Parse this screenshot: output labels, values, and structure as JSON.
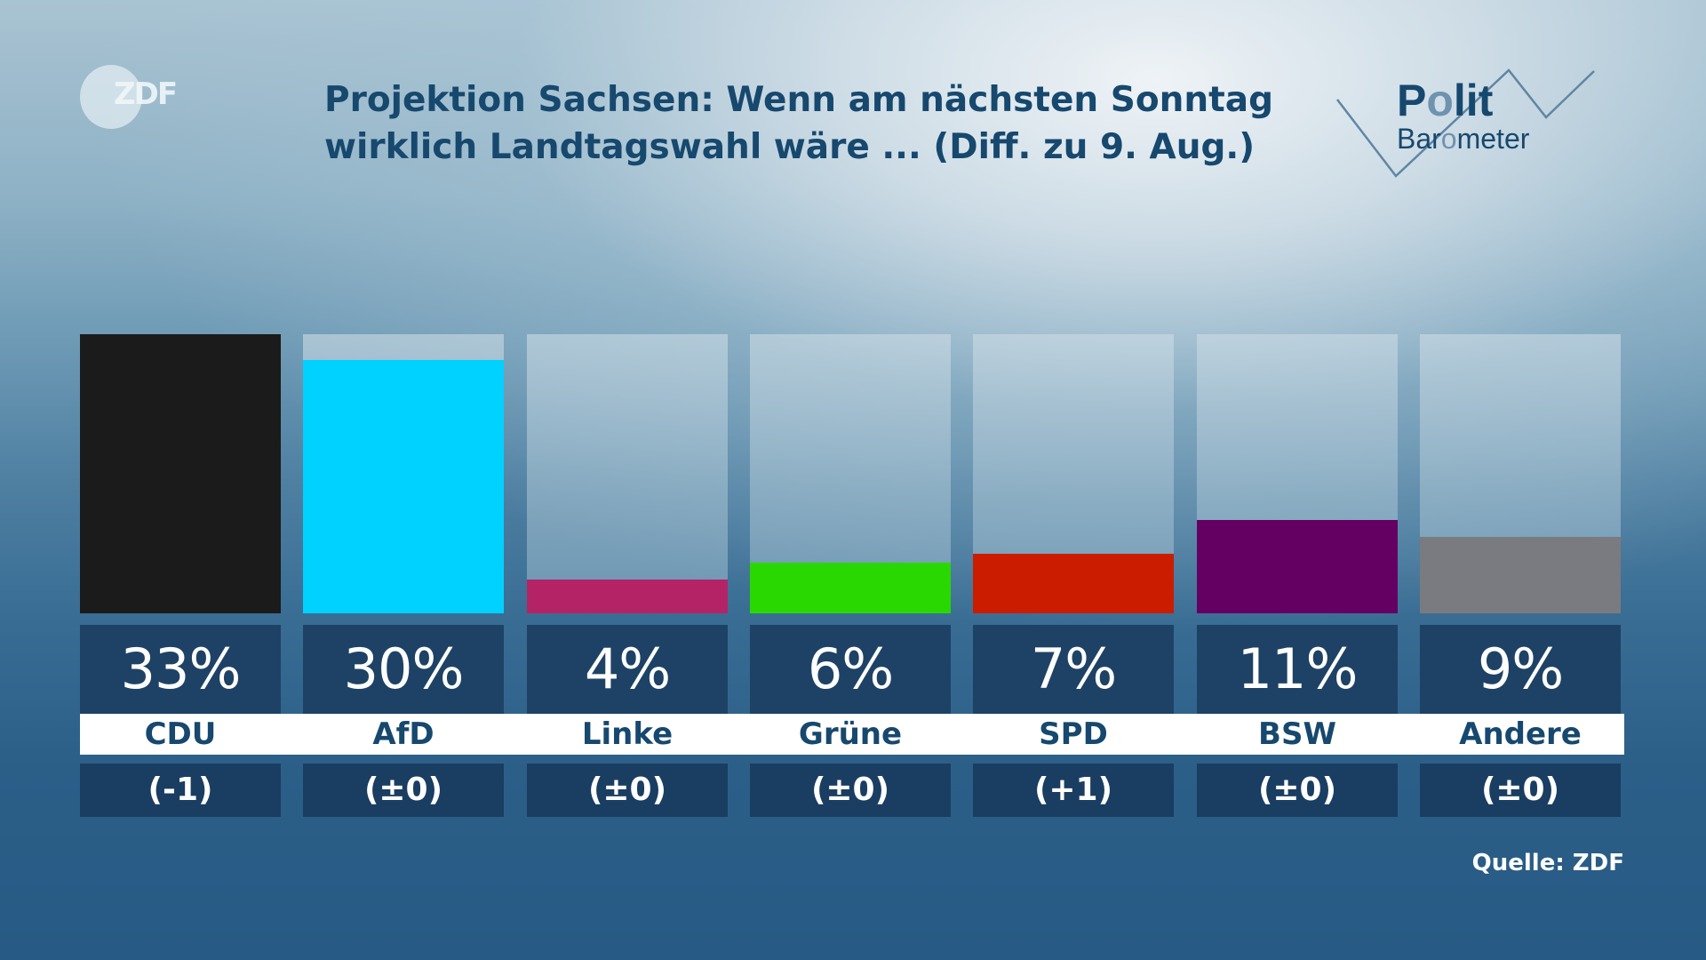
{
  "logo": {
    "broadcaster": "ZDF",
    "show_line1": "Polit",
    "show_line2": "Barometer"
  },
  "header": {
    "title_line1": "Projektion Sachsen: Wenn am nächsten Sonntag",
    "title_line2": "wirklich Landtagswahl wäre ... (Diff. zu 9. Aug.)"
  },
  "footer": {
    "source": "Quelle: ZDF"
  },
  "chart_data": {
    "type": "bar",
    "title": "Projektion Sachsen: Wenn am nächsten Sonntag wirklich Landtagswahl wäre ... (Diff. zu 9. Aug.)",
    "xlabel": "",
    "ylabel": "",
    "unit": "%",
    "ylim": [
      0,
      33
    ],
    "grid": false,
    "legend": "none",
    "categories": [
      "CDU",
      "AfD",
      "Linke",
      "Grüne",
      "SPD",
      "BSW",
      "Andere"
    ],
    "values": [
      33,
      30,
      4,
      6,
      7,
      11,
      9
    ],
    "value_labels": [
      "33%",
      "30%",
      "4%",
      "6%",
      "7%",
      "11%",
      "9%"
    ],
    "diff_labels": [
      "(-1)",
      "(±0)",
      "(±0)",
      "(±0)",
      "(+1)",
      "(±0)",
      "(±0)"
    ],
    "diff_values": [
      -1,
      0,
      0,
      0,
      1,
      0,
      0
    ],
    "colors": [
      "#1b1b1b",
      "#00d2ff",
      "#b52367",
      "#29d800",
      "#cc1c00",
      "#630062",
      "#7a7b80"
    ],
    "source": "Quelle: ZDF"
  }
}
